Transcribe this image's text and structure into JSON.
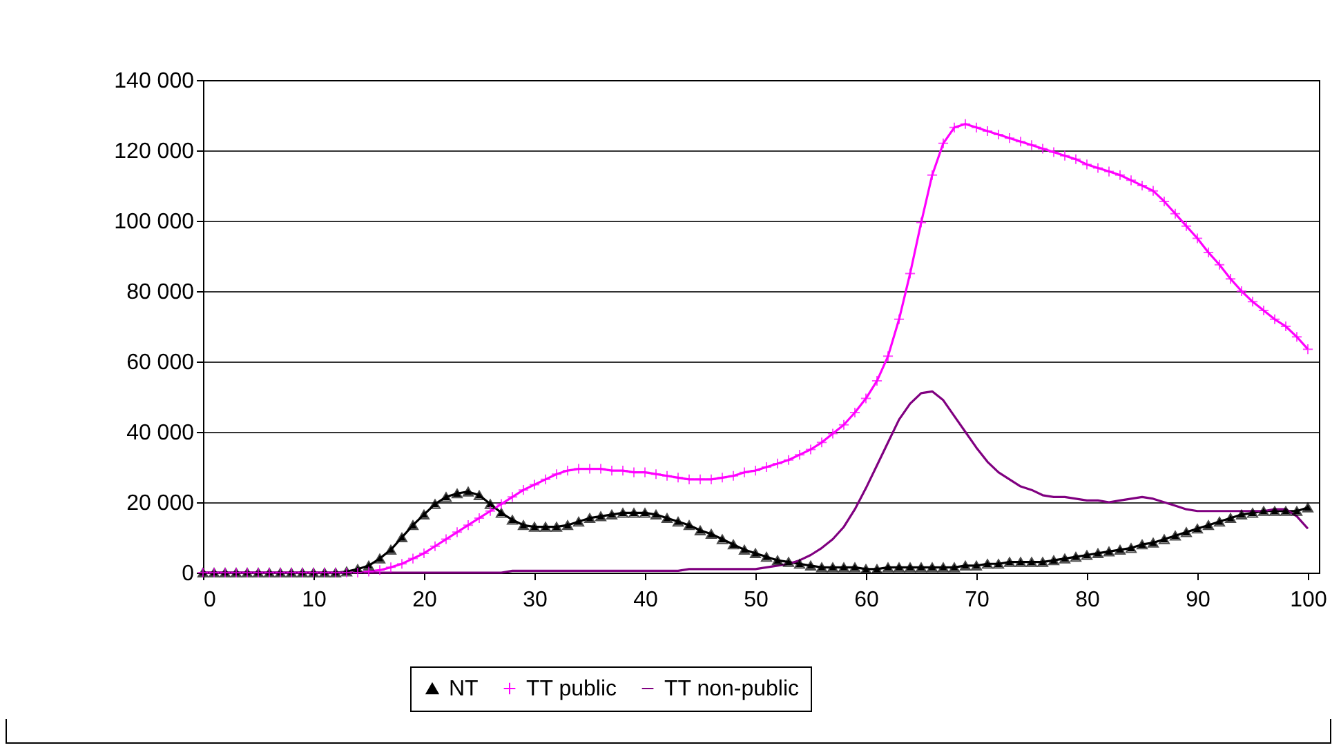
{
  "chart_data": {
    "type": "line",
    "xlim": [
      0,
      101
    ],
    "xticks": [
      0,
      10,
      20,
      30,
      40,
      50,
      60,
      70,
      80,
      90,
      100
    ],
    "ylim": [
      0,
      140000
    ],
    "yticks": [
      {
        "value": 0,
        "label": "0"
      },
      {
        "value": 20000,
        "label": "20 000"
      },
      {
        "value": 40000,
        "label": "40 000"
      },
      {
        "value": 60000,
        "label": "60 000"
      },
      {
        "value": 80000,
        "label": "80 000"
      },
      {
        "value": 100000,
        "label": "100 000"
      },
      {
        "value": 120000,
        "label": "120 000"
      },
      {
        "value": 140000,
        "label": "140 000"
      }
    ],
    "grid": "y",
    "legend": "bottom",
    "x": [
      0,
      1,
      2,
      3,
      4,
      5,
      6,
      7,
      8,
      9,
      10,
      11,
      12,
      13,
      14,
      15,
      16,
      17,
      18,
      19,
      20,
      21,
      22,
      23,
      24,
      25,
      26,
      27,
      28,
      29,
      30,
      31,
      32,
      33,
      34,
      35,
      36,
      37,
      38,
      39,
      40,
      41,
      42,
      43,
      44,
      45,
      46,
      47,
      48,
      49,
      50,
      51,
      52,
      53,
      54,
      55,
      56,
      57,
      58,
      59,
      60,
      61,
      62,
      63,
      64,
      65,
      66,
      67,
      68,
      69,
      70,
      71,
      72,
      73,
      74,
      75,
      76,
      77,
      78,
      79,
      80,
      81,
      82,
      83,
      84,
      85,
      86,
      87,
      88,
      89,
      90,
      91,
      92,
      93,
      94,
      95,
      96,
      97,
      98,
      99,
      100
    ],
    "series": [
      {
        "name": "NT",
        "color": "#000000",
        "marker": "triangle",
        "values": [
          0,
          0,
          0,
          0,
          0,
          0,
          0,
          0,
          0,
          0,
          0,
          0,
          0,
          300,
          1000,
          2000,
          4000,
          6500,
          10000,
          13500,
          16500,
          19500,
          21500,
          22500,
          23000,
          22000,
          19500,
          17000,
          15000,
          13500,
          13000,
          13000,
          13000,
          13500,
          14500,
          15500,
          16000,
          16500,
          17000,
          17000,
          17000,
          16500,
          15500,
          14500,
          13500,
          12000,
          11000,
          9500,
          8000,
          6500,
          5500,
          4500,
          3500,
          3000,
          2500,
          2000,
          1500,
          1500,
          1500,
          1500,
          1000,
          1000,
          1500,
          1500,
          1500,
          1500,
          1500,
          1500,
          1500,
          2000,
          2000,
          2500,
          2500,
          3000,
          3000,
          3000,
          3000,
          3500,
          4000,
          4500,
          5000,
          5500,
          6000,
          6500,
          7000,
          8000,
          8500,
          9500,
          10500,
          11500,
          12500,
          13500,
          14500,
          15500,
          16500,
          17000,
          17500,
          17500,
          17500,
          17500,
          18500
        ]
      },
      {
        "name": "TT public",
        "color": "#ff00ff",
        "marker": "cross",
        "values": [
          0,
          0,
          0,
          0,
          0,
          0,
          0,
          0,
          0,
          0,
          0,
          0,
          0,
          0,
          0,
          300,
          700,
          1500,
          2500,
          4000,
          5500,
          7500,
          9500,
          11500,
          13500,
          15500,
          17500,
          19500,
          21500,
          23500,
          25000,
          26500,
          28000,
          29000,
          29500,
          29500,
          29500,
          29000,
          29000,
          28500,
          28500,
          28000,
          27500,
          27000,
          26500,
          26500,
          26500,
          27000,
          27500,
          28500,
          29000,
          30000,
          31000,
          32000,
          33500,
          35000,
          37000,
          39500,
          42000,
          45500,
          49500,
          54500,
          61500,
          72000,
          85000,
          99500,
          113000,
          122000,
          126500,
          127500,
          126500,
          125500,
          124500,
          123500,
          122500,
          121500,
          120500,
          119500,
          118500,
          117500,
          116000,
          115000,
          114000,
          113000,
          111500,
          110000,
          108500,
          105500,
          102000,
          98500,
          95000,
          91000,
          87500,
          83500,
          80000,
          77000,
          74500,
          72000,
          70000,
          67000,
          63500
        ]
      },
      {
        "name": "TT non-public",
        "color": "#800080",
        "marker": "none",
        "values": [
          0,
          0,
          0,
          0,
          0,
          0,
          0,
          0,
          0,
          0,
          0,
          0,
          0,
          0,
          0,
          0,
          0,
          0,
          0,
          0,
          0,
          0,
          0,
          0,
          0,
          0,
          0,
          0,
          500,
          500,
          500,
          500,
          500,
          500,
          500,
          500,
          500,
          500,
          500,
          500,
          500,
          500,
          500,
          500,
          1000,
          1000,
          1000,
          1000,
          1000,
          1000,
          1000,
          1500,
          2000,
          2500,
          3500,
          5000,
          7000,
          9500,
          13000,
          18000,
          24000,
          30500,
          37000,
          43500,
          48000,
          51000,
          51500,
          49000,
          44500,
          40000,
          35500,
          31500,
          28500,
          26500,
          24500,
          23500,
          22000,
          21500,
          21500,
          21000,
          20500,
          20500,
          20000,
          20500,
          21000,
          21500,
          21000,
          20000,
          19000,
          18000,
          17500,
          17500,
          17500,
          17500,
          17500,
          17500,
          17500,
          18000,
          18000,
          16000,
          12500
        ]
      }
    ]
  }
}
